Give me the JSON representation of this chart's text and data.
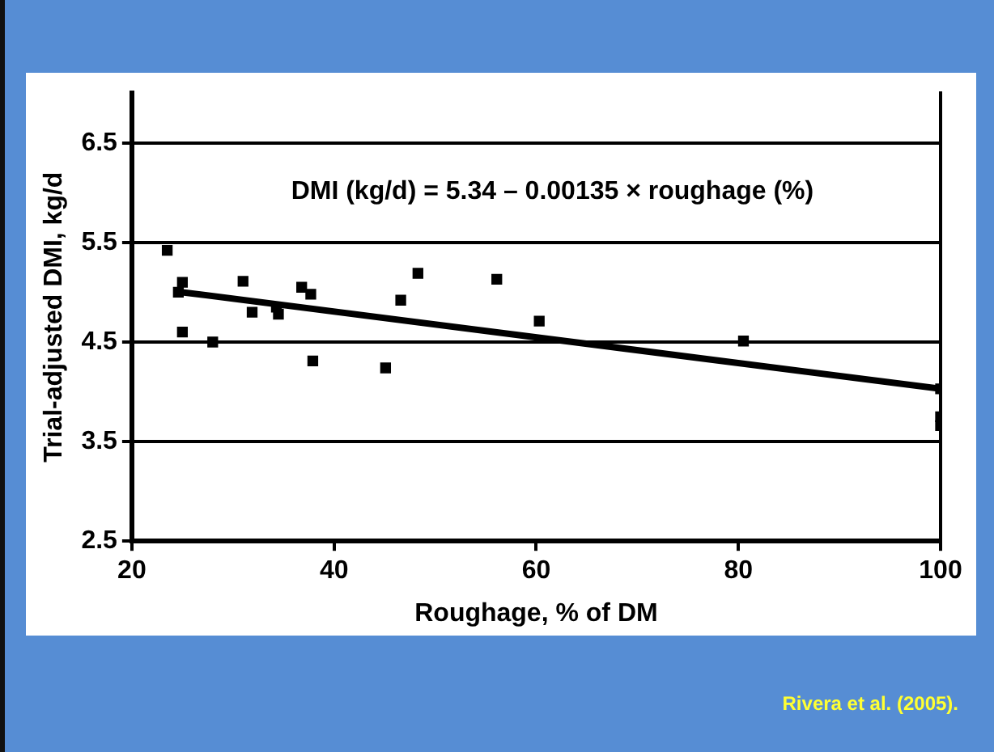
{
  "chart_data": {
    "type": "scatter",
    "xlabel": "Roughage, % of DM",
    "ylabel": "Trial-adjusted DMI, kg/d",
    "series": [
      {
        "marker": "square",
        "color": "#000000",
        "x": [
          23.5,
          25.0,
          24.6,
          25.0,
          28.0,
          31.0,
          31.9,
          34.5,
          34.3,
          36.8,
          37.7,
          37.9,
          45.1,
          46.6,
          48.3,
          56.1,
          60.3,
          80.5,
          100,
          100,
          100
        ],
        "values": [
          5.42,
          5.1,
          5.0,
          4.6,
          4.5,
          5.11,
          4.8,
          4.78,
          4.85,
          5.05,
          4.98,
          4.31,
          4.24,
          4.92,
          5.19,
          5.13,
          4.71,
          4.51,
          4.03,
          3.75,
          3.66
        ]
      },
      {
        "type": "line",
        "marker": "none",
        "color": "#000000",
        "x": [
          25,
          100
        ],
        "values": [
          5.0,
          4.03
        ]
      }
    ],
    "xlim": [
      20,
      100
    ],
    "xticks": [
      20,
      40,
      60,
      80,
      100
    ],
    "ylim": [
      2.5,
      7
    ],
    "yticks": [
      2.5,
      3.5,
      4.5,
      5.5,
      6.5
    ],
    "grid": "y",
    "legend": false,
    "annotations": [
      "DMI (kg/d) = 5.34 – 0.00135 × roughage (%)",
      "Rivera et al. (2005)."
    ]
  }
}
